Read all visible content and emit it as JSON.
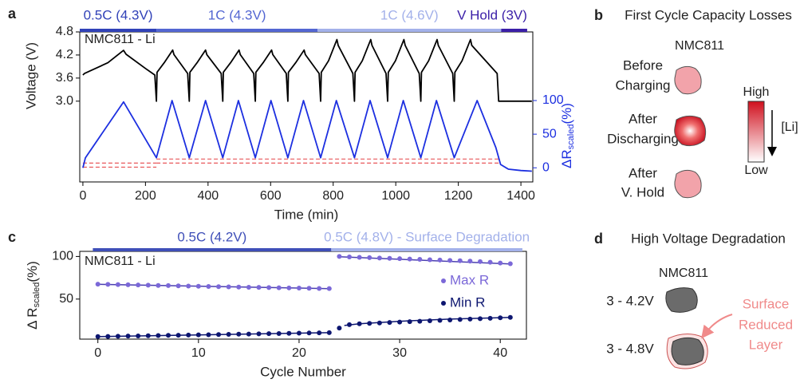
{
  "panel_labels": [
    "a",
    "b",
    "c",
    "d"
  ],
  "chart_data": [
    {
      "type": "line",
      "annotation": "NMC811 - Li",
      "xlabel": "Time (min)",
      "ylabel": "Voltage (V)",
      "y2label": {
        "main": "ΔR",
        "sub": "scaled",
        "tail": "(%)"
      },
      "xlim": [
        -10,
        1438
      ],
      "xticks": [
        0,
        200,
        400,
        600,
        800,
        1000,
        1200,
        1400
      ],
      "ylim": [
        0.9,
        4.8
      ],
      "yticks": [
        {
          "value": 3,
          "label": "3.0"
        },
        3.6,
        4.2,
        4.8
      ],
      "y2lim": [
        -21,
        202
      ],
      "y2ticks": [
        0,
        50,
        100
      ],
      "y2color": "#1c2fe0",
      "phases": [
        {
          "label": "0.5C (4.3V)",
          "start": -10,
          "end": 235,
          "color": "#3142b8"
        },
        {
          "label": "1C (4.3V)",
          "start": 235,
          "end": 750,
          "color": "#5366d2"
        },
        {
          "label": "1C (4.6V)",
          "start": 750,
          "end": 1337,
          "color": "#a3b1ea"
        },
        {
          "label": "V Hold (3V)",
          "start": 1337,
          "end": 1420,
          "color": "#3b1fa8"
        }
      ],
      "series": [
        {
          "color": "#000000",
          "x": [
            0,
            5,
            40,
            80,
            130,
            138,
            200,
            230,
            235,
            237,
            260,
            287,
            291,
            335,
            340,
            342,
            365,
            392,
            396,
            442,
            447,
            449,
            472,
            499,
            503,
            546,
            551,
            553,
            576,
            603,
            607,
            650,
            655,
            657,
            680,
            707,
            711,
            755,
            760,
            762,
            785,
            812,
            816,
            863,
            868,
            870,
            893,
            920,
            924,
            969,
            974,
            976,
            999,
            1026,
            1030,
            1075,
            1080,
            1082,
            1105,
            1132,
            1136,
            1182,
            1187,
            1189,
            1212,
            1239,
            1243,
            1324,
            1329,
            1435
          ],
          "values": [
            3.68,
            3.72,
            3.85,
            4.0,
            4.32,
            4.22,
            3.85,
            3.68,
            3.0,
            3.75,
            4.0,
            4.33,
            4.21,
            3.72,
            3.0,
            3.75,
            4.0,
            4.33,
            4.21,
            3.72,
            3.0,
            3.75,
            4.0,
            4.33,
            4.21,
            3.72,
            3.0,
            3.75,
            4.0,
            4.33,
            4.21,
            3.72,
            3.0,
            3.75,
            4.0,
            4.33,
            4.21,
            3.72,
            3.0,
            3.75,
            4.05,
            4.6,
            4.45,
            3.72,
            3.0,
            3.75,
            4.05,
            4.6,
            4.45,
            3.72,
            3.0,
            3.75,
            4.05,
            4.6,
            4.45,
            3.72,
            3.0,
            3.75,
            4.05,
            4.6,
            4.45,
            3.72,
            3.0,
            3.75,
            4.05,
            4.6,
            4.45,
            3.72,
            3.0,
            3.0
          ]
        },
        {
          "color": "#1c2fe0",
          "axis": "y2",
          "x": [
            0,
            8,
            130,
            235,
            285,
            340,
            392,
            447,
            497,
            551,
            601,
            655,
            705,
            760,
            810,
            868,
            918,
            974,
            1024,
            1080,
            1130,
            1187,
            1260,
            1320,
            1335,
            1360,
            1400,
            1435
          ],
          "values": [
            0,
            15,
            98,
            15,
            100,
            15,
            100,
            15,
            100,
            15,
            100,
            15,
            100,
            15,
            100,
            15,
            100,
            15,
            100,
            15,
            100,
            15,
            100,
            30,
            5,
            -2,
            -4,
            -5
          ]
        }
      ],
      "reference_lines": [
        {
          "color": "#e8585a",
          "axis": "y2",
          "x": [
            0,
            235
          ],
          "values": [
            7,
            7
          ]
        },
        {
          "color": "#e8585a",
          "axis": "y2",
          "x": [
            0,
            235
          ],
          "values": [
            1,
            1
          ]
        },
        {
          "color": "#e8585a",
          "axis": "y2",
          "x": [
            235,
            1329
          ],
          "values": [
            13,
            13
          ]
        },
        {
          "color": "#e8585a",
          "axis": "y2",
          "x": [
            235,
            1329
          ],
          "values": [
            7,
            7
          ]
        }
      ]
    },
    {
      "type": "scatter",
      "annotation": "NMC811 - Li",
      "xlabel": "Cycle Number",
      "ylabel": {
        "main": "Δ R",
        "sub": "scaled",
        "tail": "(%)"
      },
      "xlim": [
        -1.8,
        42.6
      ],
      "xticks": [
        0,
        10,
        20,
        30,
        40
      ],
      "ylim": [
        3,
        106
      ],
      "yticks": [
        50,
        100
      ],
      "phases": [
        {
          "label": "0.5C (4.2V)",
          "start": -0.5,
          "end": 23.2,
          "color": "#3f4fb8"
        },
        {
          "label": "0.5C (4.8V) - Surface Degradation",
          "start": 23.2,
          "end": 42.2,
          "color": "#a3b1ea"
        }
      ],
      "series": [
        {
          "name": "Max R",
          "color": "#7b68d8",
          "x": [
            0,
            1,
            2,
            3,
            4,
            5,
            6,
            7,
            8,
            9,
            10,
            11,
            12,
            13,
            14,
            15,
            16,
            17,
            18,
            19,
            20,
            21,
            22,
            23,
            24,
            25,
            26,
            27,
            28,
            29,
            30,
            31,
            32,
            33,
            34,
            35,
            36,
            37,
            38,
            39,
            40,
            41
          ],
          "values": [
            67.5,
            67.3,
            67,
            66.8,
            66.5,
            66.3,
            66,
            65.8,
            65.5,
            65.3,
            65,
            64.8,
            64.6,
            64.3,
            64.1,
            63.9,
            63.7,
            63.5,
            63.3,
            63.1,
            62.9,
            62.7,
            62.5,
            62.3,
            100,
            99.5,
            99,
            98.6,
            98.2,
            97.8,
            97.4,
            97,
            96.6,
            96.2,
            95.8,
            95.4,
            95,
            94.5,
            94,
            93.2,
            92.3,
            91.5
          ]
        },
        {
          "name": "Min R",
          "color": "#0d1670",
          "x": [
            0,
            1,
            2,
            3,
            4,
            5,
            6,
            7,
            8,
            9,
            10,
            11,
            12,
            13,
            14,
            15,
            16,
            17,
            18,
            19,
            20,
            21,
            22,
            23,
            24,
            25,
            26,
            27,
            28,
            29,
            30,
            31,
            32,
            33,
            34,
            35,
            36,
            37,
            38,
            39,
            40,
            41
          ],
          "values": [
            6,
            6.2,
            6.4,
            6.6,
            6.8,
            7,
            7.2,
            7.4,
            7.6,
            7.8,
            8,
            8.2,
            8.4,
            8.6,
            8.8,
            9,
            9.2,
            9.4,
            9.6,
            9.8,
            10,
            10.2,
            10.4,
            10.6,
            16,
            20,
            21,
            21.5,
            22,
            22.5,
            23,
            23.5,
            24,
            24.5,
            25,
            25.5,
            26,
            26.5,
            27,
            27.5,
            28,
            28.5
          ]
        }
      ],
      "fits": [
        {
          "color": "#4a3fb0",
          "x": [
            0,
            23
          ],
          "values": [
            67.3,
            62.3
          ]
        },
        {
          "color": "#4a3fb0",
          "x": [
            24,
            41
          ],
          "values": [
            99.6,
            91.2
          ]
        },
        {
          "color": "#0d1670",
          "x": [
            0,
            23
          ],
          "values": [
            6,
            10.6
          ]
        },
        {
          "color": "#0d1670",
          "x": [
            24.5,
            26,
            30,
            35,
            41
          ],
          "values": [
            19,
            21,
            24,
            26.5,
            28.5
          ]
        }
      ]
    }
  ],
  "diagram_b": {
    "title": "First Cycle Capacity Losses",
    "sample": "NMC811",
    "states": [
      [
        "Before",
        "Charging"
      ],
      [
        "After",
        "Discharging"
      ],
      [
        "After",
        "V. Hold"
      ]
    ],
    "scale": {
      "high": "High",
      "low": "Low",
      "quantity": "[Li]"
    }
  },
  "diagram_d": {
    "title": "High Voltage Degradation",
    "sample": "NMC811",
    "conditions": [
      "3 - 4.2V",
      "3 - 4.8V"
    ],
    "callout": [
      "Surface",
      "Reduced",
      "Layer"
    ]
  }
}
